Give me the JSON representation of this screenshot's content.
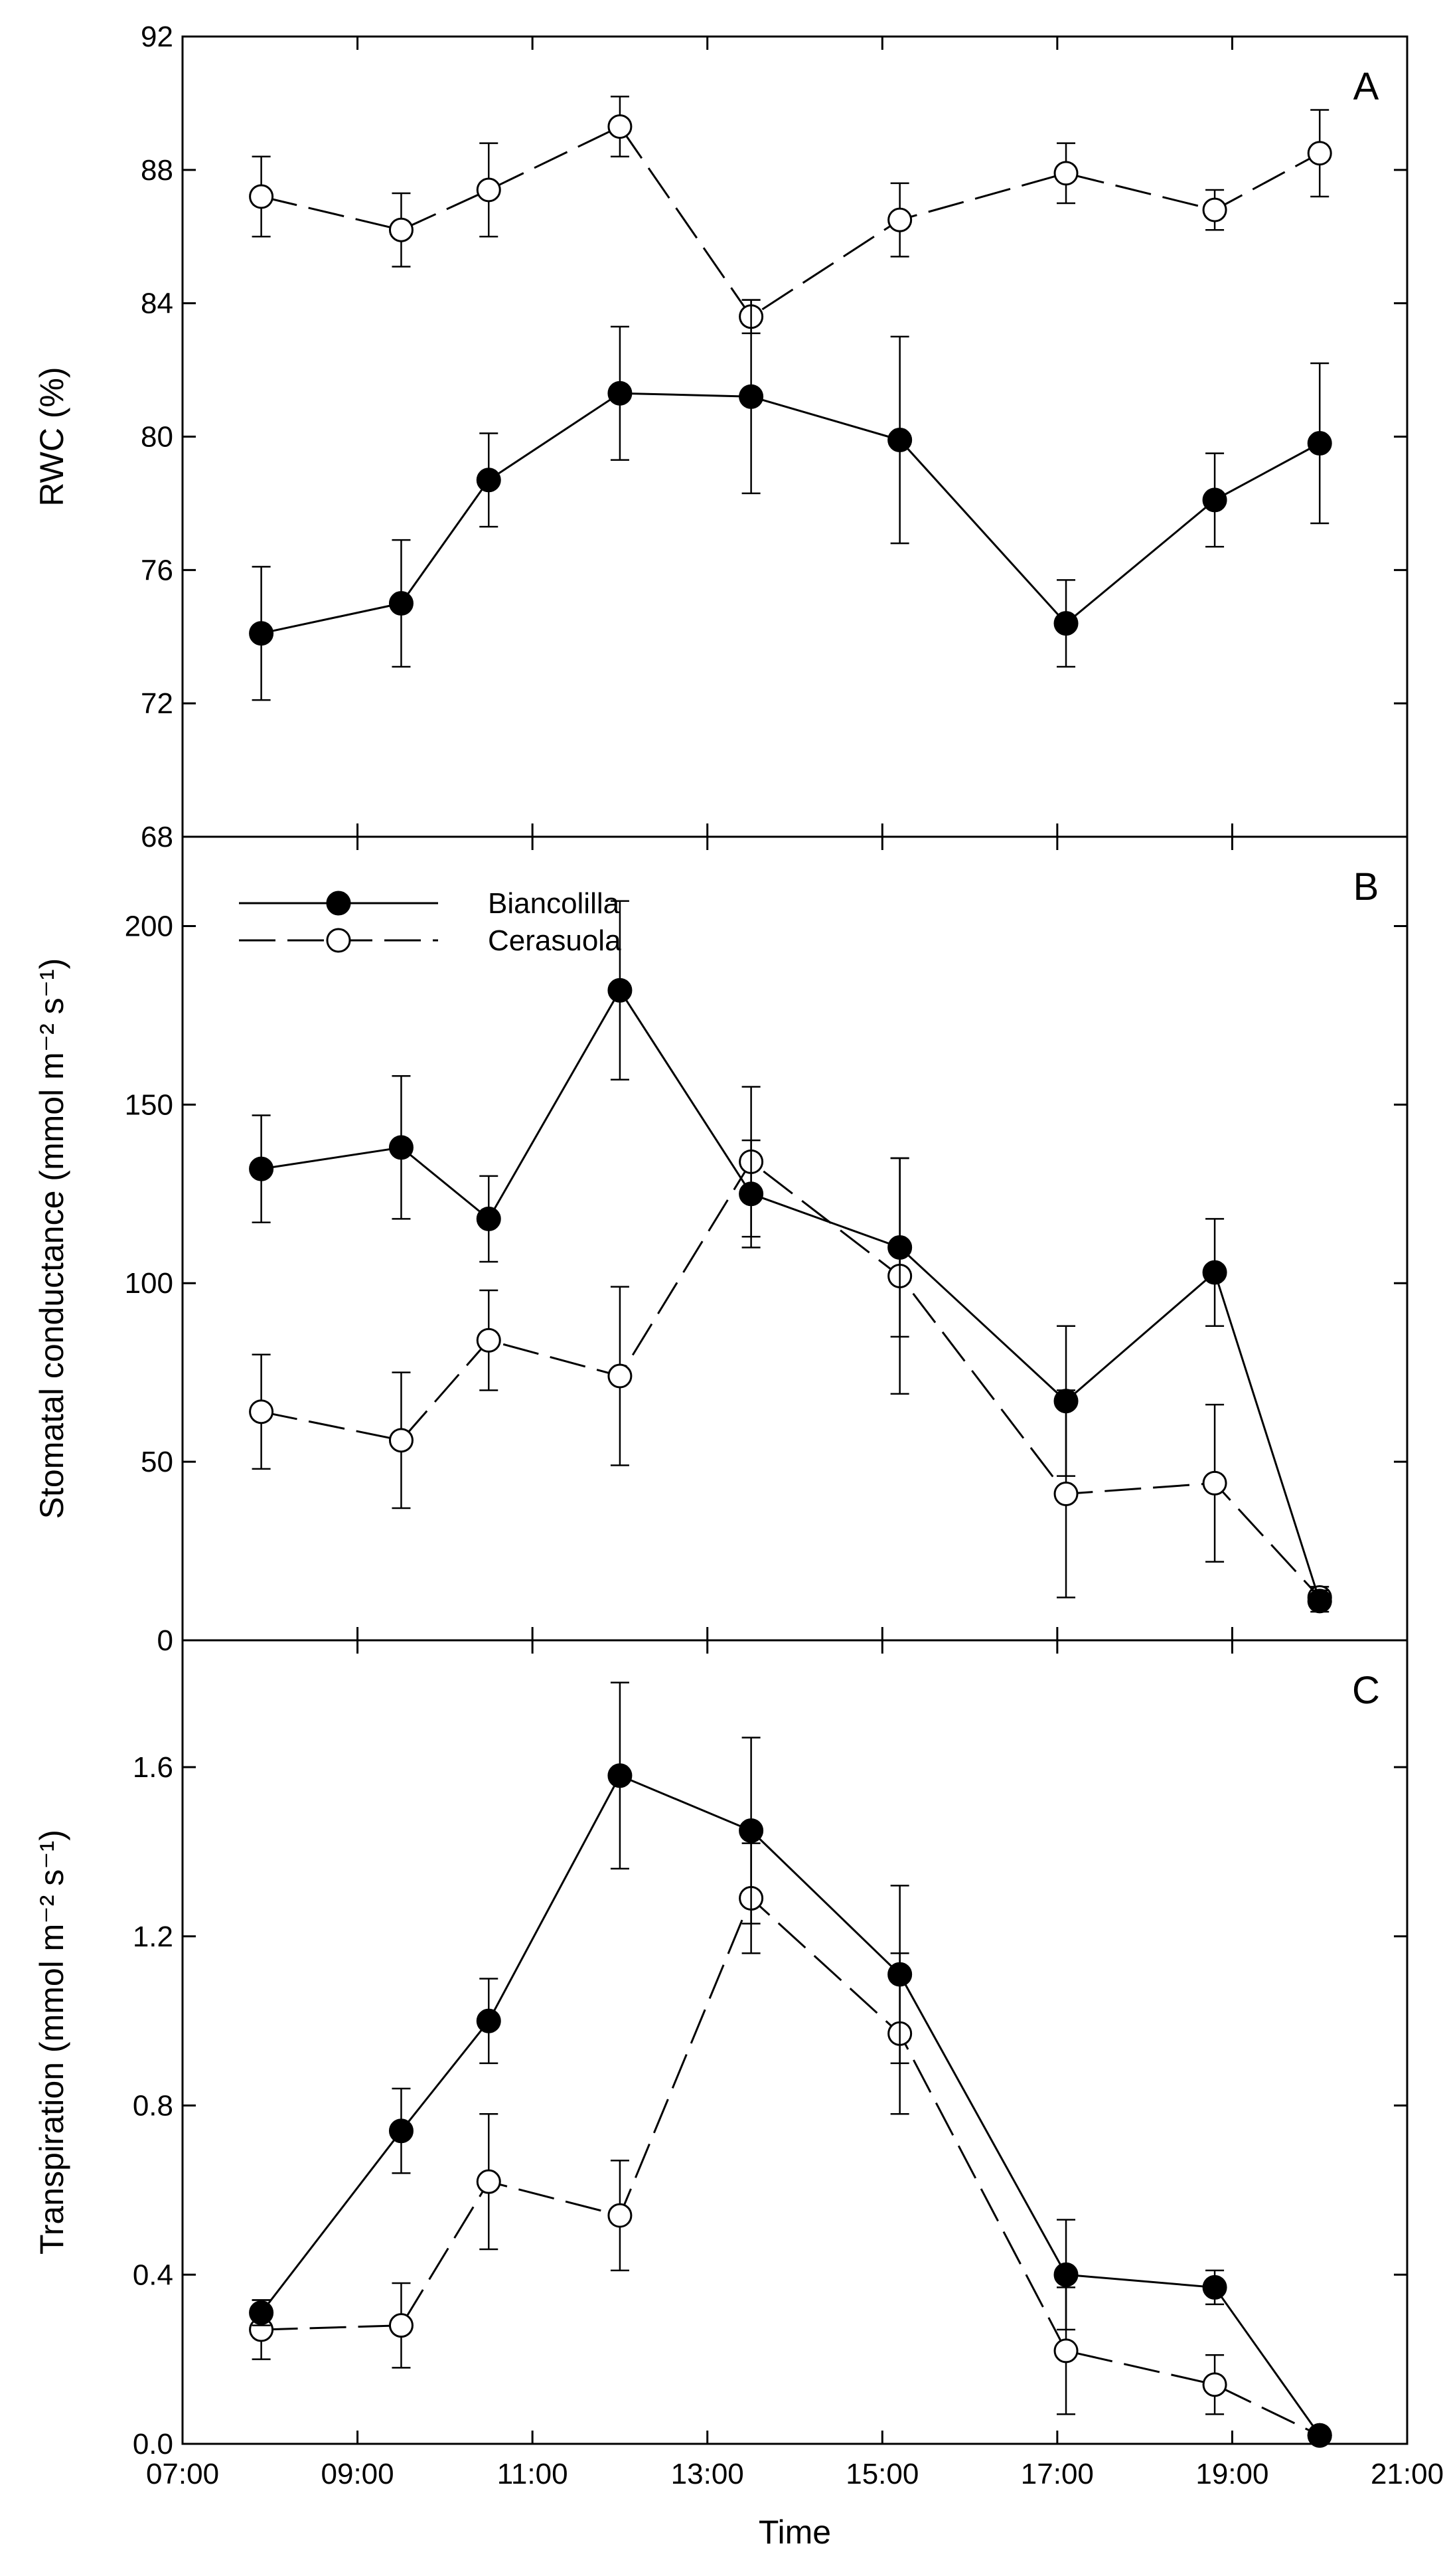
{
  "chart_data": [
    {
      "type": "line",
      "panel": "A",
      "title": "",
      "xlabel": "",
      "ylabel": "RWC (%)",
      "ylim": [
        68,
        92
      ],
      "yticks": [
        68,
        72,
        76,
        80,
        84,
        88,
        92
      ],
      "xlim_hours": [
        7,
        21
      ],
      "x_time": [
        "07:54",
        "09:30",
        "10:30",
        "12:00",
        "13:30",
        "15:12",
        "17:06",
        "18:48",
        "20:00"
      ],
      "grid": false,
      "series": [
        {
          "name": "Biancolilla",
          "marker": "filled-circle",
          "line": "solid",
          "values": [
            74.1,
            75.0,
            78.7,
            81.3,
            81.2,
            79.9,
            74.4,
            78.1,
            79.8
          ],
          "err": [
            2.0,
            1.9,
            1.4,
            2.0,
            2.9,
            3.1,
            1.3,
            1.4,
            2.4
          ]
        },
        {
          "name": "Cerasuola",
          "marker": "open-circle",
          "line": "dashed",
          "values": [
            87.2,
            86.2,
            87.4,
            89.3,
            83.6,
            86.5,
            87.9,
            86.8,
            88.5
          ],
          "err": [
            1.2,
            1.1,
            1.4,
            0.9,
            0.5,
            1.1,
            0.9,
            0.6,
            1.3
          ]
        }
      ]
    },
    {
      "type": "line",
      "panel": "B",
      "title": "",
      "xlabel": "",
      "ylabel": "Stomatal conductance (mmol m⁻² s⁻¹)",
      "ylim": [
        0,
        225
      ],
      "yticks": [
        0,
        50,
        100,
        150,
        200
      ],
      "xlim_hours": [
        7,
        21
      ],
      "x_time": [
        "07:54",
        "09:30",
        "10:30",
        "12:00",
        "13:30",
        "15:12",
        "17:06",
        "18:48",
        "20:00"
      ],
      "grid": false,
      "legend": "top-left",
      "series": [
        {
          "name": "Biancolilla",
          "marker": "filled-circle",
          "line": "solid",
          "values": [
            132,
            138,
            118,
            182,
            125,
            110,
            67,
            103,
            11
          ],
          "err": [
            15,
            20,
            12,
            25,
            15,
            25,
            21,
            15,
            3
          ]
        },
        {
          "name": "Cerasuola",
          "marker": "open-circle",
          "line": "dashed",
          "values": [
            64,
            56,
            84,
            74,
            134,
            102,
            41,
            44,
            12
          ],
          "err": [
            16,
            19,
            14,
            25,
            21,
            33,
            29,
            22,
            3
          ]
        }
      ]
    },
    {
      "type": "line",
      "panel": "C",
      "title": "",
      "xlabel": "Time",
      "ylabel": "Transpiration (mmol m⁻² s⁻¹)",
      "ylim": [
        0,
        1.9
      ],
      "yticks": [
        "0.0",
        "0.4",
        "0.8",
        "1.2",
        "1.6"
      ],
      "xlim_hours": [
        7,
        21
      ],
      "xticks": [
        "07:00",
        "09:00",
        "11:00",
        "13:00",
        "15:00",
        "17:00",
        "19:00",
        "21:00"
      ],
      "x_time": [
        "07:54",
        "09:30",
        "10:30",
        "12:00",
        "13:30",
        "15:12",
        "17:06",
        "18:48",
        "20:00"
      ],
      "grid": false,
      "series": [
        {
          "name": "Biancolilla",
          "marker": "filled-circle",
          "line": "solid",
          "values": [
            0.31,
            0.74,
            1.0,
            1.58,
            1.45,
            1.11,
            0.4,
            0.37,
            0.02
          ],
          "err": [
            0.03,
            0.1,
            0.1,
            0.22,
            0.22,
            0.21,
            0.13,
            0.04,
            0.01
          ]
        },
        {
          "name": "Cerasuola",
          "marker": "open-circle",
          "line": "dashed",
          "values": [
            0.27,
            0.28,
            0.62,
            0.54,
            1.29,
            0.97,
            0.22,
            0.14,
            0.02
          ],
          "err": [
            0.07,
            0.1,
            0.16,
            0.13,
            0.13,
            0.19,
            0.15,
            0.07,
            0.01
          ]
        }
      ]
    }
  ]
}
